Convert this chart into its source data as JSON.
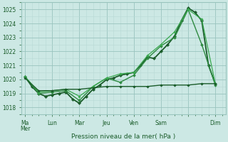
{
  "xlabel": "Pression niveau de la mer( hPa )",
  "background_color": "#cce8e4",
  "grid_color_minor": "#b8d8d4",
  "grid_color_major": "#99c4be",
  "line_colors": [
    "#1a5c2a",
    "#2d8a40",
    "#3aaa50",
    "#1a5c2a"
  ],
  "x_major_ticks": [
    0,
    4,
    8,
    12,
    16,
    20,
    24,
    28
  ],
  "x_major_labels": [
    "Ma​Mer",
    "Lun",
    "Mar",
    "Jeu",
    "Ven",
    "Sam",
    "",
    "Dim"
  ],
  "xlim": [
    -0.5,
    29.5
  ],
  "ylim": [
    1017.5,
    1025.5
  ],
  "yticks": [
    1018,
    1019,
    1020,
    1021,
    1022,
    1023,
    1024,
    1025
  ],
  "series": [
    {
      "x": [
        0,
        1,
        2,
        3,
        4,
        5,
        6,
        7,
        8,
        9,
        10,
        11,
        12,
        13,
        14,
        15,
        16,
        17,
        18,
        19,
        20,
        21,
        22,
        23,
        24,
        25,
        26,
        27,
        28
      ],
      "y": [
        1020.2,
        1019.5,
        1019.0,
        1018.8,
        1018.9,
        1019.0,
        1019.1,
        1018.6,
        1018.3,
        1018.8,
        1019.3,
        1019.6,
        1020.0,
        1020.1,
        1020.3,
        1020.4,
        1020.5,
        1021.0,
        1021.6,
        1021.5,
        1022.0,
        1022.5,
        1023.1,
        1024.2,
        1025.1,
        1024.8,
        1024.2,
        1021.0,
        1019.7
      ],
      "color": "#1a5c2a",
      "lw": 1.3,
      "marker": "D",
      "ms": 2.2
    },
    {
      "x": [
        0,
        2,
        4,
        6,
        8,
        10,
        12,
        14,
        16,
        18,
        20,
        22,
        24,
        26,
        28
      ],
      "y": [
        1020.2,
        1019.0,
        1019.1,
        1019.2,
        1018.5,
        1019.5,
        1020.1,
        1019.8,
        1020.3,
        1021.5,
        1022.4,
        1023.0,
        1025.0,
        1022.5,
        1019.6
      ],
      "color": "#2d8a40",
      "lw": 1.0,
      "marker": "D",
      "ms": 2.0
    },
    {
      "x": [
        0,
        2,
        4,
        6,
        8,
        10,
        12,
        14,
        16,
        18,
        20,
        22,
        24,
        26,
        28
      ],
      "y": [
        1020.2,
        1019.1,
        1019.2,
        1019.3,
        1018.8,
        1019.5,
        1020.1,
        1020.4,
        1020.5,
        1021.7,
        1022.5,
        1023.4,
        1025.0,
        1024.3,
        1019.7
      ],
      "color": "#3aaa50",
      "lw": 0.9,
      "marker": "D",
      "ms": 1.8
    },
    {
      "x": [
        0,
        2,
        4,
        6,
        8,
        10,
        12,
        14,
        16,
        18,
        20,
        22,
        24,
        26,
        28
      ],
      "y": [
        1020.1,
        1019.2,
        1019.2,
        1019.3,
        1019.3,
        1019.4,
        1019.5,
        1019.5,
        1019.5,
        1019.5,
        1019.6,
        1019.6,
        1019.6,
        1019.7,
        1019.7
      ],
      "color": "#1a5c2a",
      "lw": 1.0,
      "marker": "D",
      "ms": 1.8
    }
  ]
}
